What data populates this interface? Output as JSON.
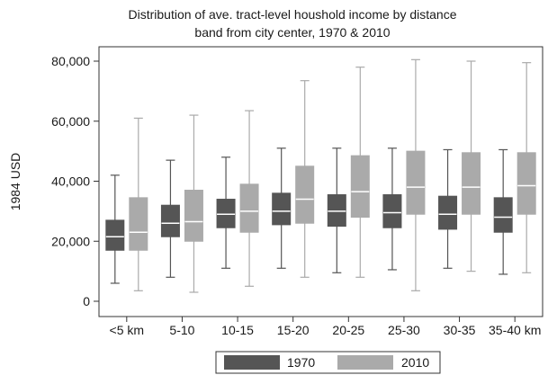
{
  "chart_data": {
    "type": "box",
    "title_lines": [
      "Distribution of ave. tract-level houshold income by distance",
      "band from city center, 1970 & 2010"
    ],
    "xlabel": "",
    "ylabel": "1984 USD",
    "ylim": [
      0,
      80000
    ],
    "y_ticks": [
      0,
      20000,
      40000,
      60000,
      80000
    ],
    "y_tick_labels": [
      "0",
      "20,000",
      "40,000",
      "60,000",
      "80,000"
    ],
    "grid": false,
    "legend_position": "bottom",
    "categories": [
      "<5 km",
      "5-10",
      "10-15",
      "15-20",
      "20-25",
      "25-30",
      "30-35",
      "35-40 km"
    ],
    "series": [
      {
        "name": "1970",
        "color": "#555555",
        "boxes": [
          {
            "whisker_low": 6000,
            "q1": 17000,
            "median": 21500,
            "q3": 27000,
            "whisker_high": 42000
          },
          {
            "whisker_low": 8000,
            "q1": 21500,
            "median": 26000,
            "q3": 32000,
            "whisker_high": 47000
          },
          {
            "whisker_low": 11000,
            "q1": 24500,
            "median": 29000,
            "q3": 34000,
            "whisker_high": 48000
          },
          {
            "whisker_low": 11000,
            "q1": 25500,
            "median": 30000,
            "q3": 36000,
            "whisker_high": 51000
          },
          {
            "whisker_low": 9500,
            "q1": 25000,
            "median": 30000,
            "q3": 35500,
            "whisker_high": 51000
          },
          {
            "whisker_low": 10500,
            "q1": 24500,
            "median": 29500,
            "q3": 35500,
            "whisker_high": 51000
          },
          {
            "whisker_low": 11000,
            "q1": 24000,
            "median": 29000,
            "q3": 35000,
            "whisker_high": 50500
          },
          {
            "whisker_low": 9000,
            "q1": 23000,
            "median": 28000,
            "q3": 34500,
            "whisker_high": 50500
          }
        ]
      },
      {
        "name": "2010",
        "color": "#aaaaaa",
        "boxes": [
          {
            "whisker_low": 3500,
            "q1": 17000,
            "median": 23000,
            "q3": 34500,
            "whisker_high": 61000
          },
          {
            "whisker_low": 3000,
            "q1": 20000,
            "median": 26500,
            "q3": 37000,
            "whisker_high": 62000
          },
          {
            "whisker_low": 5000,
            "q1": 23000,
            "median": 30000,
            "q3": 39000,
            "whisker_high": 63500
          },
          {
            "whisker_low": 8000,
            "q1": 26000,
            "median": 34000,
            "q3": 45000,
            "whisker_high": 73500
          },
          {
            "whisker_low": 8000,
            "q1": 28000,
            "median": 36500,
            "q3": 48500,
            "whisker_high": 78000
          },
          {
            "whisker_low": 3500,
            "q1": 29000,
            "median": 38000,
            "q3": 50000,
            "whisker_high": 80500
          },
          {
            "whisker_low": 10000,
            "q1": 29000,
            "median": 38000,
            "q3": 49500,
            "whisker_high": 80000
          },
          {
            "whisker_low": 9500,
            "q1": 29000,
            "median": 38500,
            "q3": 49500,
            "whisker_high": 79500
          }
        ]
      }
    ]
  }
}
